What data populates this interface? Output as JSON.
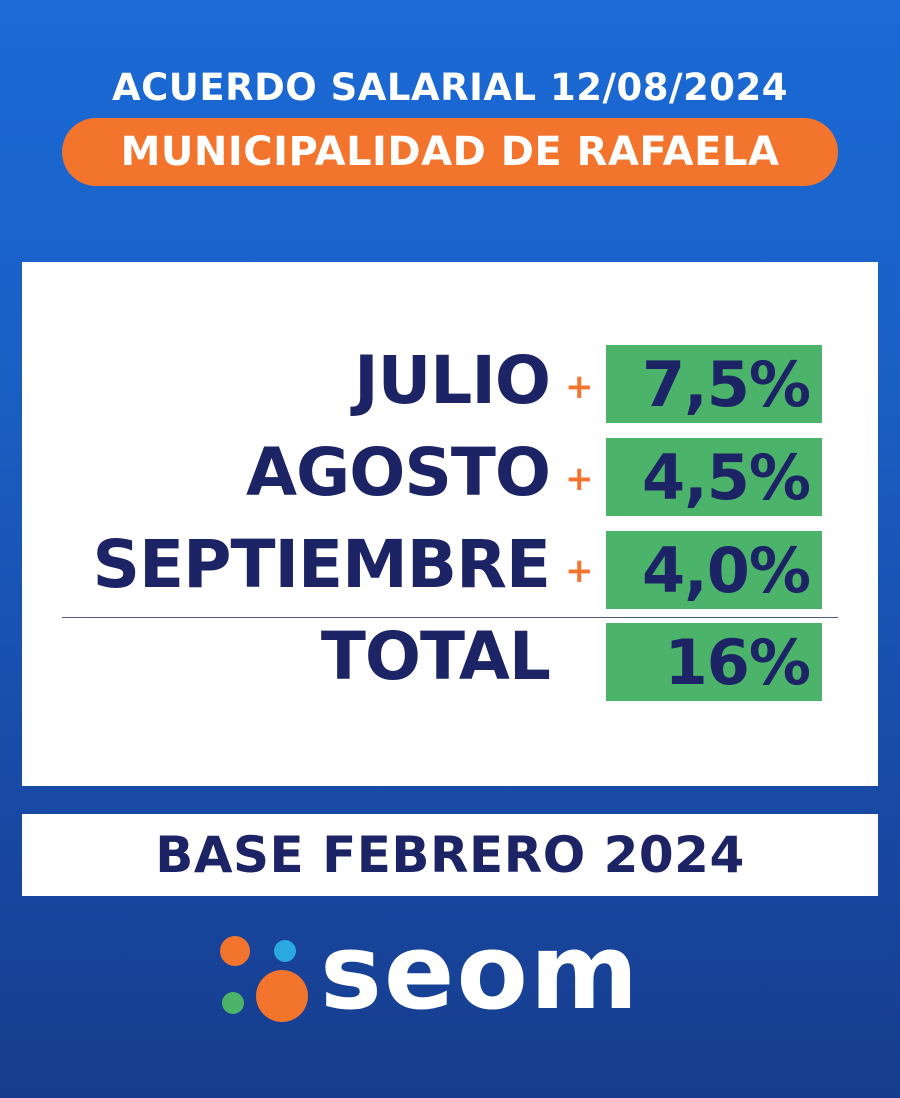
{
  "header": {
    "title": "ACUERDO SALARIAL 12/08/2024",
    "organization": "MUNICIPALIDAD DE RAFAELA"
  },
  "rows": [
    {
      "label": "JULIO",
      "sign": "+",
      "value": "7,5%"
    },
    {
      "label": "AGOSTO",
      "sign": "+",
      "value": "4,5%"
    },
    {
      "label": "SEPTIEMBRE",
      "sign": "+",
      "value": "4,0%"
    }
  ],
  "total": {
    "label": "TOTAL",
    "value": "16%"
  },
  "base": "BASE FEBRERO 2024",
  "logo": {
    "text": "seom",
    "dot_colors": [
      "#f3742c",
      "#2aa8e0",
      "#4cb46a",
      "#f3742c"
    ]
  },
  "colors": {
    "background": "#1a5fc4",
    "accent_orange": "#f3742c",
    "value_green": "#4cb46a",
    "text_navy": "#1d2466"
  }
}
